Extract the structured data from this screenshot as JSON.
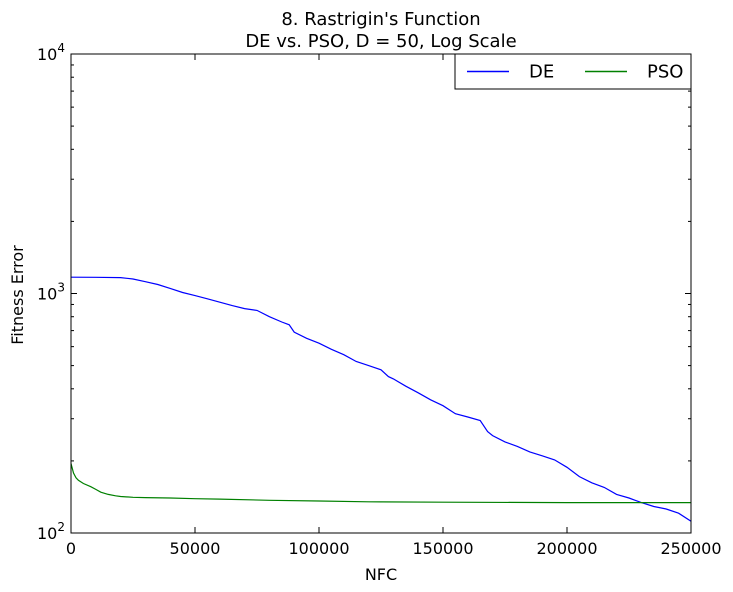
{
  "chart_data": {
    "type": "line",
    "title_line1": "8.   Rastrigin's Function",
    "title_line2": "DE vs. PSO, D = 50, Log Scale",
    "xlabel": "NFC",
    "ylabel": "Fitness Error",
    "xlim": [
      0,
      250000
    ],
    "ylim": [
      100,
      10000
    ],
    "yscale": "log",
    "grid": false,
    "legend_position": "top-right",
    "x_ticks": [
      {
        "value": 0,
        "label": "0"
      },
      {
        "value": 50000,
        "label": "50000"
      },
      {
        "value": 100000,
        "label": "100000"
      },
      {
        "value": 150000,
        "label": "150000"
      },
      {
        "value": 200000,
        "label": "200000"
      },
      {
        "value": 250000,
        "label": "250000"
      }
    ],
    "y_ticks": [
      {
        "value": 100,
        "base": "10",
        "exp": "2"
      },
      {
        "value": 1000,
        "base": "10",
        "exp": "3"
      },
      {
        "value": 10000,
        "base": "10",
        "exp": "4"
      }
    ],
    "series": [
      {
        "name": "DE",
        "color": "#0000ff",
        "x": [
          0,
          10000,
          20000,
          25000,
          30000,
          35000,
          40000,
          45000,
          50000,
          55000,
          60000,
          65000,
          70000,
          75000,
          80000,
          85000,
          88000,
          90000,
          95000,
          100000,
          105000,
          110000,
          115000,
          120000,
          125000,
          128000,
          130000,
          135000,
          140000,
          145000,
          150000,
          155000,
          160000,
          165000,
          168000,
          170000,
          175000,
          180000,
          185000,
          190000,
          195000,
          200000,
          205000,
          210000,
          215000,
          220000,
          225000,
          230000,
          235000,
          240000,
          245000,
          250000
        ],
        "y": [
          1170,
          1168,
          1165,
          1150,
          1120,
          1090,
          1050,
          1010,
          980,
          950,
          920,
          890,
          865,
          850,
          800,
          760,
          740,
          690,
          650,
          620,
          585,
          555,
          520,
          500,
          480,
          450,
          440,
          410,
          385,
          360,
          340,
          315,
          305,
          295,
          265,
          255,
          240,
          230,
          218,
          210,
          202,
          188,
          172,
          162,
          155,
          145,
          140,
          134,
          129,
          126,
          121,
          112
        ]
      },
      {
        "name": "PSO",
        "color": "#008000",
        "x": [
          0,
          1000,
          2000,
          3000,
          5000,
          8000,
          10000,
          12000,
          15000,
          18000,
          20000,
          25000,
          30000,
          40000,
          50000,
          60000,
          80000,
          100000,
          120000,
          150000,
          200000,
          250000
        ],
        "y": [
          195,
          178,
          170,
          166,
          161,
          156,
          152,
          148,
          145,
          143,
          142,
          141,
          140.5,
          140,
          139,
          138.5,
          137,
          136,
          135,
          134.5,
          134,
          134
        ]
      }
    ]
  }
}
